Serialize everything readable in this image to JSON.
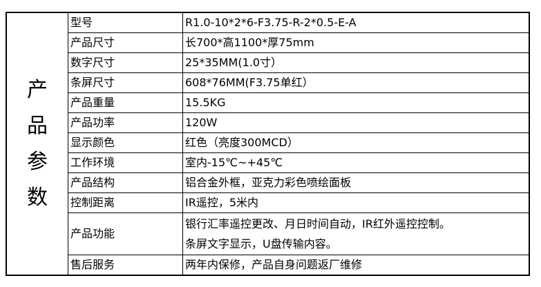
{
  "side_title": [
    "产",
    "品",
    "参",
    "数"
  ],
  "rows": [
    {
      "label": "型号",
      "value": [
        "R1.0-10*2*6-F3.75-R-2*0.5-E-A"
      ]
    },
    {
      "label": "产品尺寸",
      "value": [
        "长700*高1100*厚75mm"
      ]
    },
    {
      "label": "数字尺寸",
      "value": [
        "25*35MM(1.0寸）"
      ]
    },
    {
      "label": "条屏尺寸",
      "value": [
        "608*76MM(F3.75单红）"
      ]
    },
    {
      "label": "产品重量",
      "value": [
        "15.5KG"
      ]
    },
    {
      "label": "产品功率",
      "value": [
        "120W"
      ]
    },
    {
      "label": "显示颜色",
      "value": [
        "红色（亮度300MCD）"
      ]
    },
    {
      "label": "工作环境",
      "value": [
        "室内-15℃~+45℃"
      ]
    },
    {
      "label": "产品结构",
      "value": [
        "铝合金外框，亚克力彩色喷绘面板"
      ]
    },
    {
      "label": "控制距离",
      "value": [
        "IR遥控，5米内"
      ]
    },
    {
      "label": "产品功能",
      "value": [
        "银行汇率遥控更改、月日时间自动，IR红外遥控控制。",
        "条屏文字显示，U盘传输内容。"
      ]
    },
    {
      "label": "售后服务",
      "value": [
        "两年内保修，产品自身问题返厂维修"
      ]
    }
  ]
}
